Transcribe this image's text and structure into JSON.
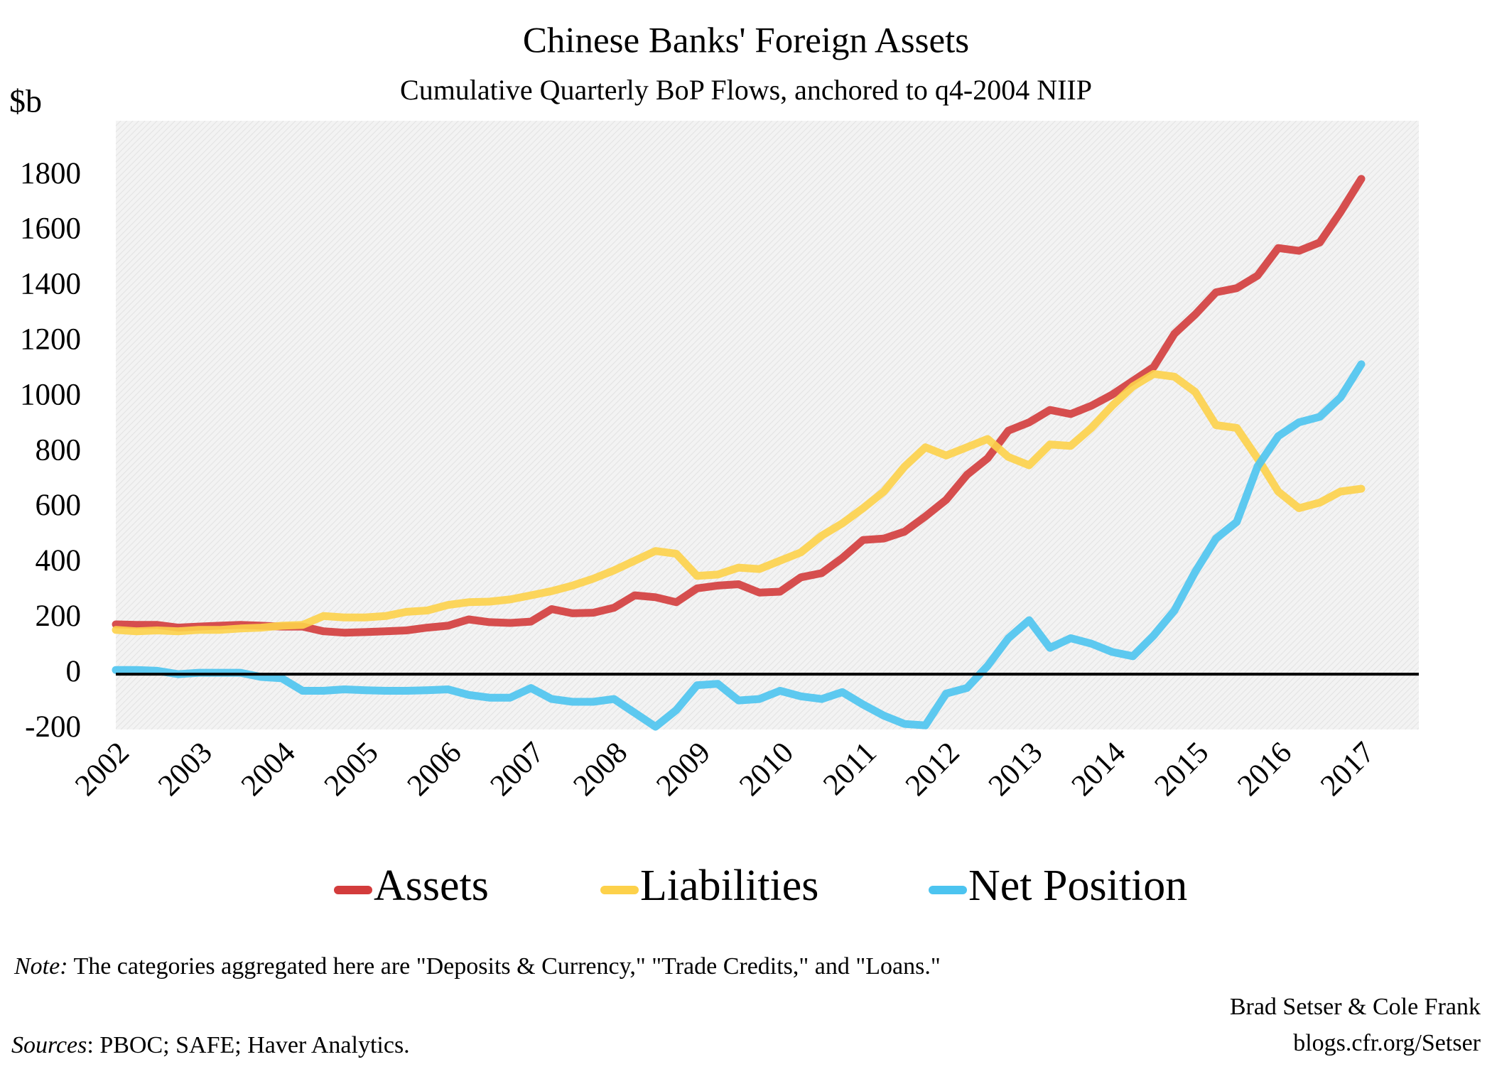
{
  "chart_data": {
    "type": "line",
    "title": "Chinese Banks' Foreign Assets",
    "subtitle": "Cumulative Quarterly BoP Flows, anchored to q4-2004 NIIP",
    "y_label": "$b",
    "categories": [
      "2002",
      null,
      null,
      null,
      "2003",
      null,
      null,
      null,
      "2004",
      null,
      null,
      null,
      "2005",
      null,
      null,
      null,
      "2006",
      null,
      null,
      null,
      "2007",
      null,
      null,
      null,
      "2008",
      null,
      null,
      null,
      "2009",
      null,
      null,
      null,
      "2010",
      null,
      null,
      null,
      "2011",
      null,
      null,
      null,
      "2012",
      null,
      null,
      null,
      "2013",
      null,
      null,
      null,
      "2014",
      null,
      null,
      null,
      "2015",
      null,
      null,
      null,
      "2016",
      null,
      null,
      null,
      "2017"
    ],
    "series": [
      {
        "name": "Assets",
        "color": "#d33c3c",
        "values": [
          180,
          178,
          178,
          168,
          172,
          175,
          178,
          175,
          172,
          172,
          155,
          150,
          152,
          155,
          158,
          168,
          175,
          198,
          188,
          185,
          190,
          235,
          220,
          222,
          240,
          285,
          278,
          260,
          310,
          320,
          325,
          295,
          298,
          350,
          365,
          420,
          485,
          490,
          515,
          570,
          630,
          720,
          780,
          880,
          910,
          955,
          940,
          970,
          1010,
          1060,
          1110,
          1230,
          1300,
          1380,
          1395,
          1440,
          1540,
          1530,
          1560,
          1670,
          1790
        ]
      },
      {
        "name": "Liabilities",
        "color": "#fdd14a",
        "values": [
          160,
          155,
          158,
          155,
          160,
          160,
          165,
          168,
          175,
          178,
          210,
          205,
          205,
          210,
          225,
          230,
          250,
          260,
          262,
          270,
          285,
          300,
          320,
          345,
          375,
          410,
          445,
          435,
          355,
          360,
          385,
          380,
          410,
          440,
          500,
          545,
          600,
          660,
          750,
          820,
          790,
          820,
          850,
          785,
          755,
          830,
          825,
          890,
          970,
          1040,
          1085,
          1075,
          1020,
          900,
          890,
          780,
          660,
          600,
          620,
          660,
          670
        ]
      },
      {
        "name": "Net Position",
        "color": "#4cc4f0",
        "values": [
          15,
          15,
          12,
          0,
          5,
          5,
          5,
          -10,
          -15,
          -60,
          -60,
          -55,
          -58,
          -60,
          -60,
          -58,
          -55,
          -75,
          -85,
          -85,
          -50,
          -90,
          -100,
          -100,
          -90,
          -140,
          -190,
          -130,
          -40,
          -35,
          -95,
          -90,
          -60,
          -80,
          -90,
          -65,
          -110,
          -150,
          -180,
          -185,
          -70,
          -50,
          30,
          130,
          195,
          95,
          130,
          110,
          80,
          65,
          140,
          230,
          370,
          490,
          550,
          750,
          860,
          910,
          930,
          1000,
          1120
        ]
      }
    ],
    "ylim": [
      -200,
      2000
    ],
    "yticks": [
      -200,
      0,
      200,
      400,
      600,
      800,
      1000,
      1200,
      1400,
      1600,
      1800
    ],
    "grid": false,
    "legend": "bottom"
  },
  "note": {
    "label": "Note:",
    "text": "The categories aggregated here are \"Deposits & Currency,\" \"Trade  Credits,\" and \"Loans.\""
  },
  "sources": {
    "label": "Sources",
    "text": ": PBOC; SAFE; Haver Analytics."
  },
  "credit": [
    "Brad Setser & Cole Frank",
    "blogs.cfr.org/Setser"
  ]
}
